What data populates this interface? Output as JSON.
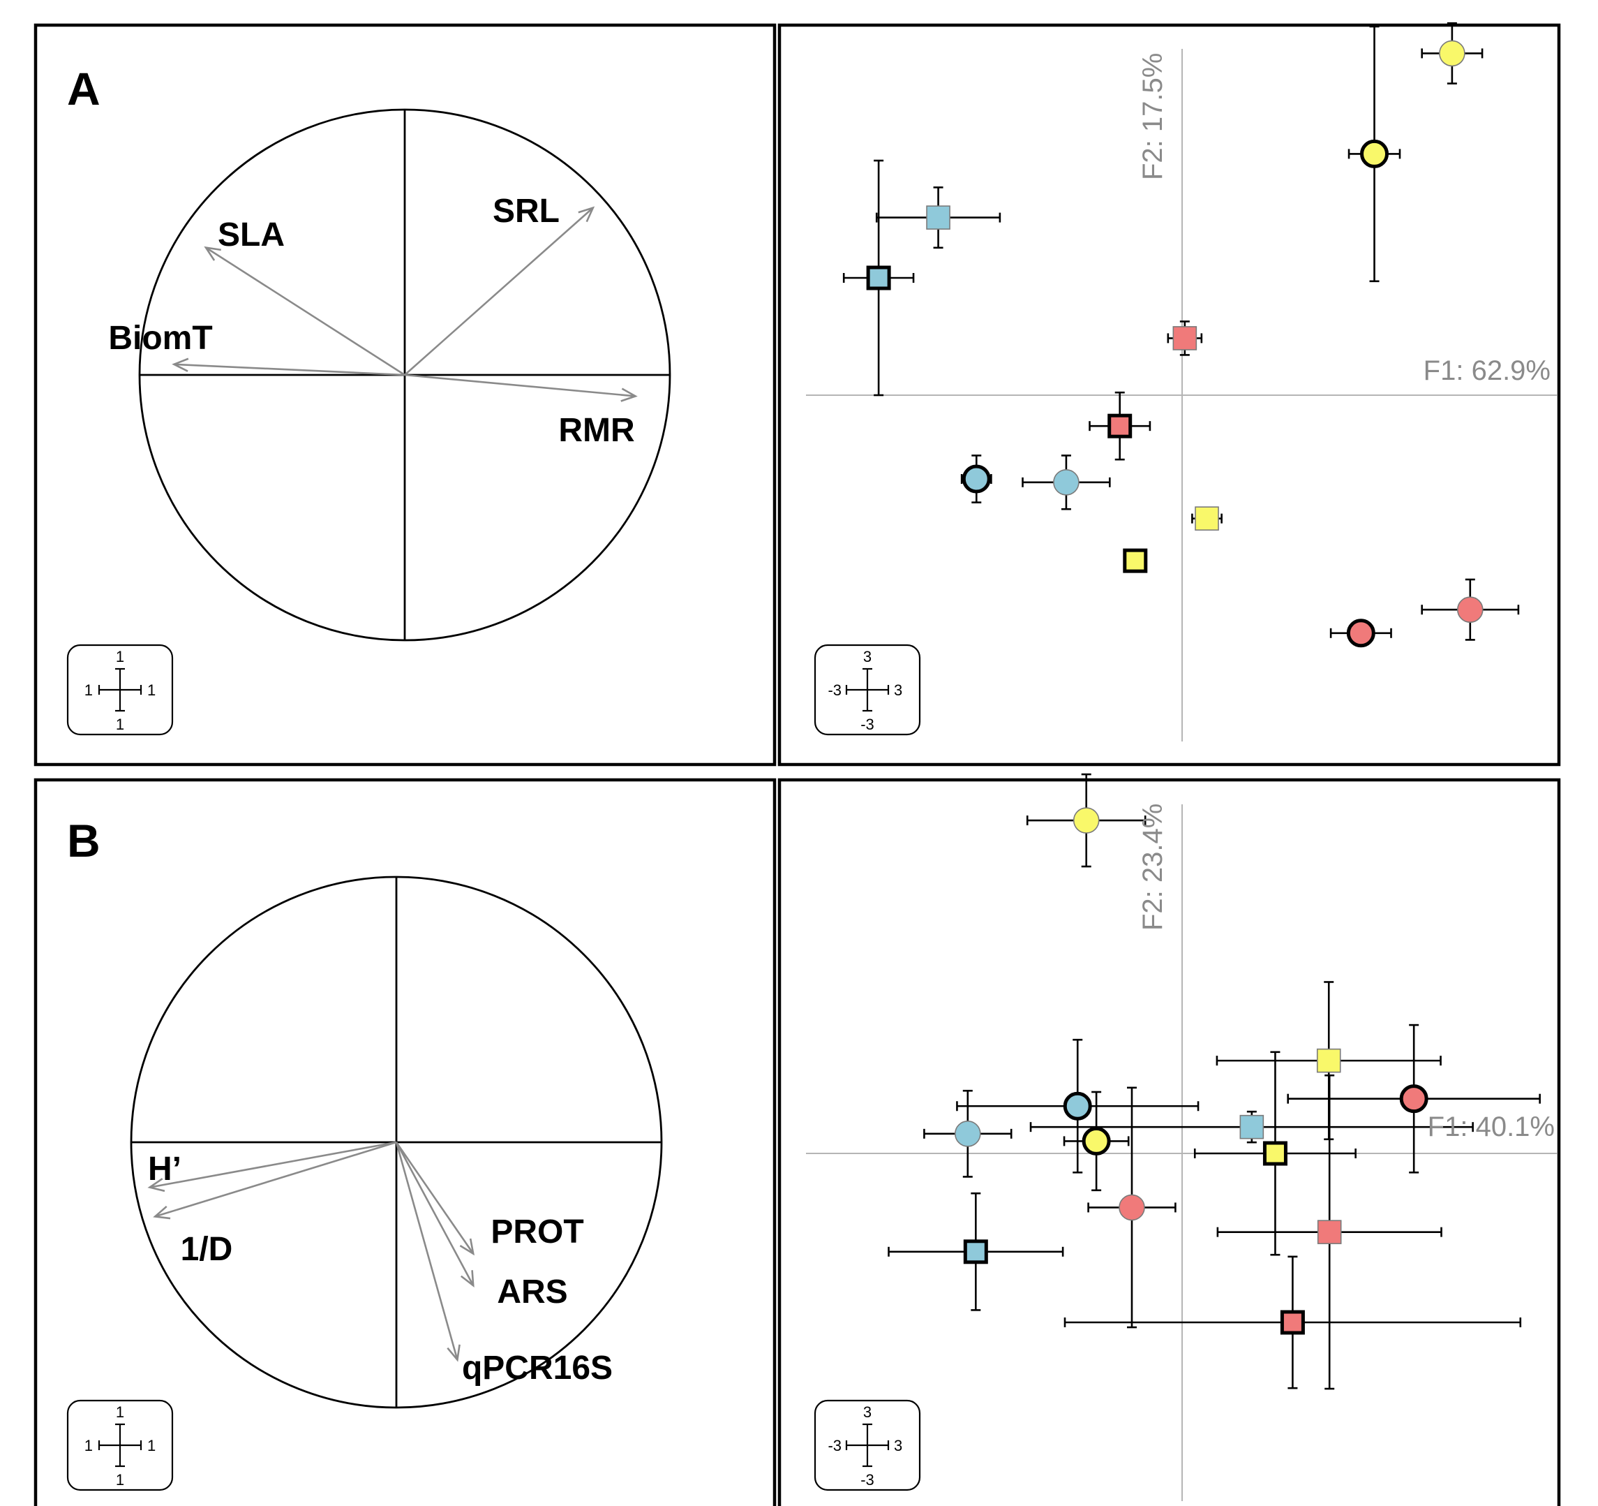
{
  "colors": {
    "blue": "#8fc9da",
    "red": "#f07a7a",
    "yellow": "#f9f86a",
    "vector": "#8a8a8a",
    "axis": "#b5b5b5"
  },
  "chart_data": [
    {
      "type": "scatter",
      "subtype": "correlation-circle",
      "panel": "A",
      "title": "A",
      "xlim": [
        -1,
        1
      ],
      "ylim": [
        -1,
        1
      ],
      "scale_labels": {
        "top": "1",
        "bottom": "1",
        "left": "1",
        "right": "1"
      },
      "vectors": [
        {
          "label": "SLA",
          "x": -0.75,
          "y": 0.48
        },
        {
          "label": "SRL",
          "x": 0.71,
          "y": 0.63
        },
        {
          "label": "BiomT",
          "x": -0.87,
          "y": 0.04
        },
        {
          "label": "RMR",
          "x": 0.87,
          "y": -0.08
        }
      ]
    },
    {
      "type": "scatter",
      "subtype": "factor-map",
      "panel": "A",
      "xlabel": "F1: 62.9%",
      "ylabel": "F2: 17.5%",
      "xlim": [
        -5.5,
        5.5
      ],
      "ylim": [
        -5,
        5
      ],
      "scale_labels": {
        "top": "3",
        "bottom": "-3",
        "left": "-3",
        "right": "3"
      },
      "points": [
        {
          "color": "yellow",
          "shape": "circle",
          "bold": false,
          "x": 4.03,
          "y": 5.1,
          "xerr": 0.45,
          "yerr": 0.45
        },
        {
          "color": "yellow",
          "shape": "circle",
          "bold": true,
          "x": 2.87,
          "y": 3.6,
          "xerr": 0.38,
          "yerr": 1.9
        },
        {
          "color": "blue",
          "shape": "square",
          "bold": false,
          "x": -3.64,
          "y": 2.65,
          "xerr": 0.92,
          "yerr": 0.45
        },
        {
          "color": "blue",
          "shape": "square",
          "bold": true,
          "x": -4.53,
          "y": 1.75,
          "xerr": 0.52,
          "yerr": 1.75
        },
        {
          "color": "red",
          "shape": "square",
          "bold": false,
          "x": 0.04,
          "y": 0.85,
          "xerr": 0.25,
          "yerr": 0.25
        },
        {
          "color": "red",
          "shape": "square",
          "bold": true,
          "x": -0.93,
          "y": -0.46,
          "xerr": 0.45,
          "yerr": 0.5
        },
        {
          "color": "blue",
          "shape": "circle",
          "bold": true,
          "x": -3.07,
          "y": -1.25,
          "xerr": 0.22,
          "yerr": 0.35
        },
        {
          "color": "blue",
          "shape": "circle",
          "bold": false,
          "x": -1.73,
          "y": -1.3,
          "xerr": 0.65,
          "yerr": 0.4
        },
        {
          "color": "yellow",
          "shape": "square",
          "bold": false,
          "x": 0.37,
          "y": -1.84,
          "xerr": 0.22,
          "yerr": 0.15
        },
        {
          "color": "yellow",
          "shape": "square",
          "bold": true,
          "x": -0.7,
          "y": -2.47,
          "xerr": 0,
          "yerr": 0
        },
        {
          "color": "red",
          "shape": "circle",
          "bold": false,
          "x": 4.3,
          "y": -3.2,
          "xerr": 0.72,
          "yerr": 0.45
        },
        {
          "color": "red",
          "shape": "circle",
          "bold": true,
          "x": 2.67,
          "y": -3.55,
          "xerr": 0.45,
          "yerr": 0.12
        }
      ]
    },
    {
      "type": "scatter",
      "subtype": "correlation-circle",
      "panel": "B",
      "title": "B",
      "xlim": [
        -1,
        1
      ],
      "ylim": [
        -1,
        1
      ],
      "scale_labels": {
        "top": "1",
        "bottom": "1",
        "left": "1",
        "right": "1"
      },
      "vectors": [
        {
          "label": "H’",
          "x": -0.93,
          "y": -0.17
        },
        {
          "label": "1/D",
          "x": -0.91,
          "y": -0.28
        },
        {
          "label": "PROT",
          "x": 0.29,
          "y": -0.42
        },
        {
          "label": "ARS",
          "x": 0.29,
          "y": -0.54
        },
        {
          "label": "qPCR16S",
          "x": 0.23,
          "y": -0.82
        }
      ]
    },
    {
      "type": "scatter",
      "subtype": "factor-map",
      "panel": "B",
      "xlabel": "F1: 40.1%",
      "ylabel": "F2: 23.4%",
      "xlim": [
        -5.5,
        5.5
      ],
      "ylim": [
        -5,
        5
      ],
      "scale_labels": {
        "top": "3",
        "bottom": "-3",
        "left": "-3",
        "right": "3"
      },
      "points": [
        {
          "color": "yellow",
          "shape": "circle",
          "bold": false,
          "x": -1.43,
          "y": 5.42,
          "xerr": 0.88,
          "yerr": 0.75
        },
        {
          "color": "yellow",
          "shape": "square",
          "bold": false,
          "x": 2.19,
          "y": 1.51,
          "xerr": 1.67,
          "yerr": 1.28
        },
        {
          "color": "red",
          "shape": "circle",
          "bold": true,
          "x": 3.46,
          "y": 0.89,
          "xerr": 1.88,
          "yerr": 1.2
        },
        {
          "color": "blue",
          "shape": "circle",
          "bold": true,
          "x": -1.56,
          "y": 0.77,
          "xerr": 1.8,
          "yerr": 1.08
        },
        {
          "color": "blue",
          "shape": "square",
          "bold": false,
          "x": 1.04,
          "y": 0.43,
          "xerr": 3.3,
          "yerr": 0.25
        },
        {
          "color": "blue",
          "shape": "circle",
          "bold": false,
          "x": -3.2,
          "y": 0.32,
          "xerr": 0.65,
          "yerr": 0.7
        },
        {
          "color": "yellow",
          "shape": "circle",
          "bold": true,
          "x": -1.28,
          "y": 0.2,
          "xerr": 0.48,
          "yerr": 0.8
        },
        {
          "color": "yellow",
          "shape": "square",
          "bold": true,
          "x": 1.39,
          "y": 0.0,
          "xerr": 1.2,
          "yerr": 1.65
        },
        {
          "color": "red",
          "shape": "circle",
          "bold": false,
          "x": -0.75,
          "y": -0.88,
          "xerr": 0.65,
          "yerr": 1.95
        },
        {
          "color": "red",
          "shape": "square",
          "bold": false,
          "x": 2.2,
          "y": -1.28,
          "xerr": 1.67,
          "yerr": 2.55
        },
        {
          "color": "blue",
          "shape": "square",
          "bold": true,
          "x": -3.08,
          "y": -1.6,
          "xerr": 1.3,
          "yerr": 0.95
        },
        {
          "color": "red",
          "shape": "square",
          "bold": true,
          "x": 1.65,
          "y": -2.75,
          "xerr": 3.4,
          "yerr": 1.07
        }
      ]
    }
  ]
}
